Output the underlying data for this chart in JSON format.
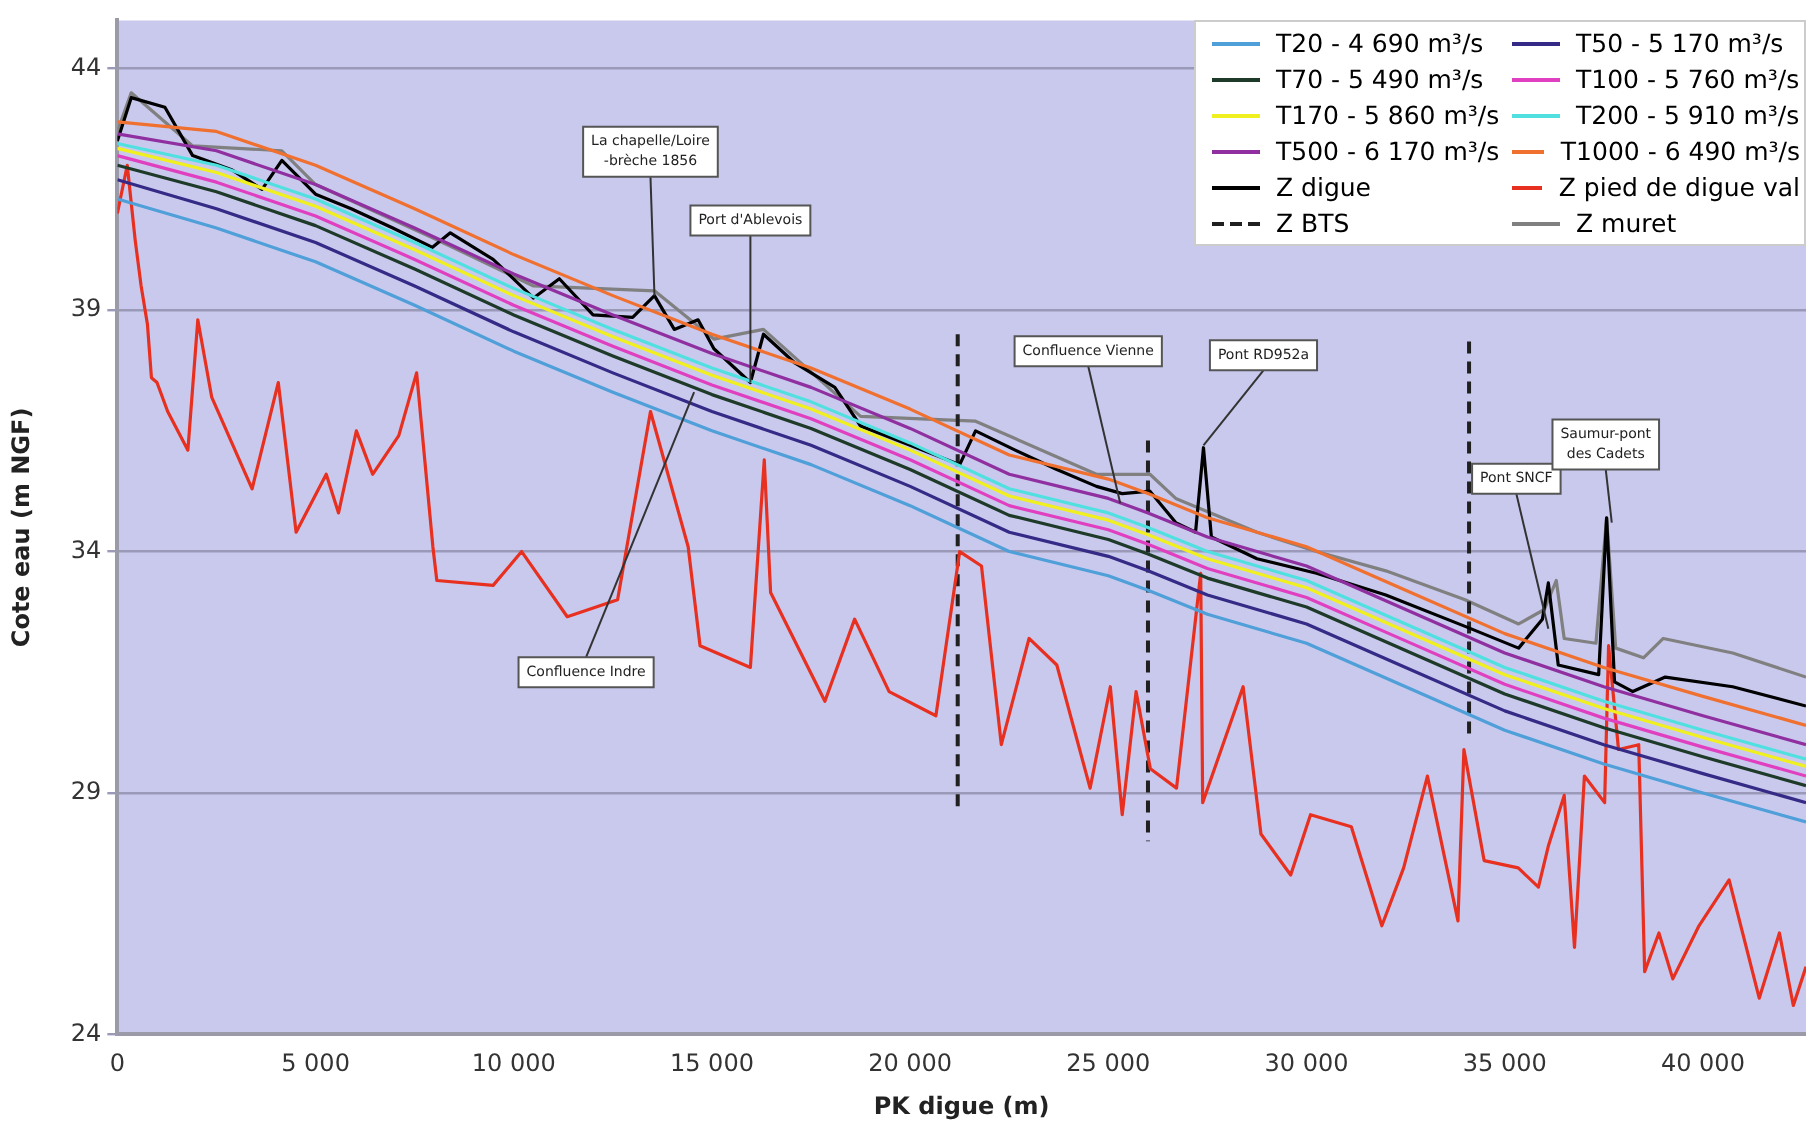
{
  "chart_data": {
    "type": "line",
    "xlabel": "PK digue (m)",
    "ylabel": "Cote eau (m NGF)",
    "xlim": [
      0,
      42600
    ],
    "ylim": [
      24,
      45
    ],
    "xticks": [
      {
        "value": 0,
        "label": "0"
      },
      {
        "value": 5000,
        "label": "5 000"
      },
      {
        "value": 10000,
        "label": "10 000"
      },
      {
        "value": 15000,
        "label": "15 000"
      },
      {
        "value": 20000,
        "label": "20 000"
      },
      {
        "value": 25000,
        "label": "25 000"
      },
      {
        "value": 30000,
        "label": "30 000"
      },
      {
        "value": 35000,
        "label": "35 000"
      },
      {
        "value": 40000,
        "label": "40 000"
      }
    ],
    "yticks": [
      24,
      29,
      34,
      39,
      44
    ],
    "grid": "y",
    "legend": "top right",
    "marker": "none",
    "x": [
      0,
      2500,
      5000,
      7500,
      10000,
      12500,
      15000,
      17500,
      20000,
      22500,
      25000,
      26000,
      27500,
      30000,
      32500,
      35000,
      37500,
      40000,
      42600
    ],
    "series": [
      {
        "name": "T20 - 4 690 m³/s",
        "color": "#4f9fd8",
        "values": [
          41.3,
          40.7,
          40.0,
          39.1,
          38.15,
          37.3,
          36.5,
          35.8,
          34.95,
          34.0,
          33.5,
          33.2,
          32.7,
          32.1,
          31.2,
          30.3,
          29.6,
          29.0,
          28.4
        ]
      },
      {
        "name": "T50 - 5 170 m³/s",
        "color": "#352a86",
        "values": [
          41.7,
          41.1,
          40.4,
          39.5,
          38.55,
          37.7,
          36.9,
          36.2,
          35.35,
          34.4,
          33.9,
          33.6,
          33.1,
          32.5,
          31.6,
          30.7,
          30.0,
          29.4,
          28.8
        ]
      },
      {
        "name": "T70 - 5 490 m³/s",
        "color": "#1e3a28",
        "values": [
          42.0,
          41.45,
          40.75,
          39.85,
          38.9,
          38.05,
          37.25,
          36.55,
          35.7,
          34.75,
          34.25,
          33.95,
          33.45,
          32.85,
          31.95,
          31.05,
          30.35,
          29.75,
          29.15
        ]
      },
      {
        "name": "T100 - 5 760 m³/s",
        "color": "#e040c0",
        "values": [
          42.2,
          41.65,
          40.95,
          40.05,
          39.1,
          38.25,
          37.45,
          36.75,
          35.9,
          34.95,
          34.45,
          34.15,
          33.65,
          33.05,
          32.15,
          31.25,
          30.55,
          29.95,
          29.35
        ]
      },
      {
        "name": "T170 - 5 860 m³/s",
        "color": "#f0f020",
        "values": [
          42.35,
          41.85,
          41.15,
          40.25,
          39.3,
          38.45,
          37.65,
          36.95,
          36.1,
          35.15,
          34.65,
          34.35,
          33.85,
          33.25,
          32.35,
          31.45,
          30.75,
          30.15,
          29.55
        ]
      },
      {
        "name": "T200 - 5 910 m³/s",
        "color": "#50e0e0",
        "values": [
          42.45,
          42.0,
          41.3,
          40.4,
          39.45,
          38.6,
          37.8,
          37.1,
          36.25,
          35.3,
          34.8,
          34.5,
          34.0,
          33.4,
          32.5,
          31.6,
          30.9,
          30.3,
          29.7
        ]
      },
      {
        "name": "T500 - 6 170 m³/s",
        "color": "#9030a0",
        "values": [
          42.65,
          42.3,
          41.6,
          40.7,
          39.75,
          38.9,
          38.1,
          37.4,
          36.55,
          35.6,
          35.1,
          34.8,
          34.3,
          33.7,
          32.8,
          31.9,
          31.2,
          30.6,
          30.0
        ]
      },
      {
        "name": "T1000 - 6 490 m³/s",
        "color": "#f07030",
        "values": [
          42.9,
          42.7,
          42.0,
          41.1,
          40.15,
          39.3,
          38.5,
          37.8,
          36.95,
          36.0,
          35.5,
          35.2,
          34.7,
          34.1,
          33.2,
          32.3,
          31.6,
          31.0,
          30.4
        ]
      },
      {
        "name": "Z digue",
        "color": "#000000",
        "x": [
          0,
          350,
          1200,
          1900,
          2900,
          3650,
          4150,
          5000,
          5900,
          6950,
          7950,
          8400,
          9480,
          10500,
          11150,
          12000,
          13000,
          13550,
          14050,
          14650,
          15050,
          15970,
          16300,
          17100,
          18100,
          18750,
          20000,
          21250,
          21650,
          22650,
          23700,
          24700,
          25350,
          26050,
          26700,
          27200,
          27400,
          27600,
          28750,
          30250,
          32000,
          34000,
          35350,
          35950,
          36100,
          36350,
          37370,
          37570,
          37770,
          38230,
          39050,
          40750,
          42600
        ],
        "values": [
          42.5,
          43.4,
          43.2,
          42.2,
          41.9,
          41.5,
          42.1,
          41.4,
          41.1,
          40.7,
          40.3,
          40.6,
          40.05,
          39.25,
          39.65,
          38.9,
          38.85,
          39.3,
          38.6,
          38.8,
          38.2,
          37.5,
          38.5,
          37.9,
          37.4,
          36.6,
          36.2,
          35.8,
          36.5,
          36.1,
          35.7,
          35.35,
          35.2,
          35.25,
          34.6,
          34.4,
          36.15,
          34.3,
          33.85,
          33.55,
          33.1,
          32.45,
          32.0,
          32.6,
          33.35,
          31.65,
          31.45,
          34.7,
          31.3,
          31.1,
          31.4,
          31.2,
          30.8
        ]
      },
      {
        "name": "Z pied de digue val",
        "color": "#e83020",
        "x": [
          0,
          250,
          450,
          600,
          760,
          860,
          1000,
          1270,
          1780,
          2030,
          2380,
          3400,
          4060,
          4510,
          5270,
          5580,
          6030,
          6440,
          7100,
          7550,
          7960,
          8060,
          9480,
          10200,
          11350,
          12620,
          13450,
          14400,
          14700,
          15970,
          16320,
          16480,
          17850,
          18600,
          19470,
          20650,
          21250,
          21800,
          22300,
          23000,
          23700,
          24540,
          25050,
          25350,
          25700,
          26060,
          26720,
          27330,
          27380,
          27890,
          28400,
          28850,
          29600,
          30100,
          31130,
          31900,
          32450,
          33050,
          33820,
          33970,
          34480,
          35340,
          35850,
          36100,
          36500,
          36760,
          37010,
          37520,
          37620,
          37870,
          38380,
          38530,
          38890,
          39240,
          39900,
          40660,
          41420,
          41930,
          42280,
          42600
        ],
        "values": [
          41.0,
          42.0,
          40.45,
          39.5,
          38.7,
          37.6,
          37.5,
          36.9,
          36.1,
          38.8,
          37.2,
          35.3,
          37.5,
          34.4,
          35.6,
          34.8,
          36.5,
          35.6,
          36.4,
          37.7,
          34.1,
          33.4,
          33.3,
          34.0,
          32.65,
          33.0,
          36.9,
          34.1,
          32.05,
          31.6,
          35.9,
          33.15,
          30.9,
          32.6,
          31.1,
          30.6,
          34.0,
          33.7,
          30.0,
          32.2,
          31.65,
          29.1,
          31.2,
          28.55,
          31.1,
          29.5,
          29.1,
          33.55,
          28.8,
          30.0,
          31.2,
          28.15,
          27.3,
          28.55,
          28.3,
          26.25,
          27.45,
          29.35,
          26.35,
          29.9,
          27.6,
          27.45,
          27.05,
          27.9,
          28.95,
          25.8,
          29.35,
          28.8,
          32.05,
          29.9,
          30.0,
          25.3,
          26.1,
          25.15,
          26.25,
          27.2,
          24.75,
          26.1,
          24.6,
          25.4
        ]
      },
      {
        "name": "Z BTS",
        "color": "#202020",
        "line_style": "dashed",
        "x": [
          21200,
          21200
        ],
        "values": [
          38.5,
          28.6
        ]
      },
      {
        "color": "#202020",
        "line_style": "dashed",
        "x": [
          26000,
          26000
        ],
        "values": [
          36.3,
          28.0
        ]
      },
      {
        "color": "#202020",
        "line_style": "dashed",
        "x": [
          34100,
          34100
        ],
        "values": [
          38.35,
          30.1
        ]
      },
      {
        "name": "Z muret",
        "color": "#808080",
        "x": [
          0,
          350,
          1900,
          4150,
          5000,
          7950,
          10500,
          13550,
          15050,
          16300,
          18750,
          21650,
          24700,
          26050,
          26700,
          28750,
          30250,
          32000,
          34000,
          35350,
          36000,
          36300,
          36500,
          37300,
          37570,
          37800,
          38500,
          39000,
          40750,
          42600
        ],
        "values": [
          42.7,
          43.5,
          42.4,
          42.3,
          41.6,
          40.5,
          39.5,
          39.4,
          38.4,
          38.6,
          36.8,
          36.7,
          35.6,
          35.6,
          35.1,
          34.4,
          34.0,
          33.6,
          33.0,
          32.5,
          32.8,
          33.4,
          32.2,
          32.1,
          34.7,
          32.0,
          31.8,
          32.2,
          31.9,
          31.4
        ]
      }
    ],
    "annotations": [
      {
        "text": "La chapelle/Loire\n-brèche 1856",
        "x": 13550,
        "y": 39.3
      },
      {
        "text": "Port d'Ablevois",
        "x": 15970,
        "y": 37.5
      },
      {
        "text": "Confluence Indre",
        "x": 14550,
        "y": 37.3
      },
      {
        "text": "Confluence Vienne",
        "x": 25300,
        "y": 35.0
      },
      {
        "text": "Pont RD952a",
        "x": 27400,
        "y": 36.2
      },
      {
        "text": "Pont SNCF",
        "x": 36100,
        "y": 32.4
      },
      {
        "text": "Saumur-pont\ndes Cadets",
        "x": 37700,
        "y": 34.6
      }
    ]
  }
}
